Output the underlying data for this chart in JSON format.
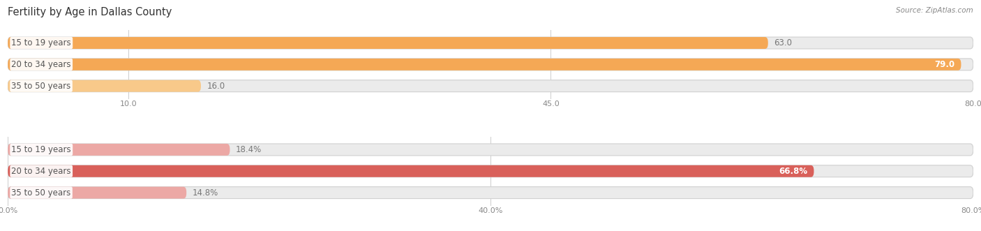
{
  "title": "Fertility by Age in Dallas County",
  "source": "Source: ZipAtlas.com",
  "top_bars": {
    "categories": [
      "15 to 19 years",
      "20 to 34 years",
      "35 to 50 years"
    ],
    "values": [
      63.0,
      79.0,
      16.0
    ],
    "xlim": [
      0,
      80
    ],
    "xticks": [
      10.0,
      45.0,
      80.0
    ],
    "xtick_labels": [
      "10.0",
      "45.0",
      "80.0"
    ],
    "bar_color_strong": "#F5A855",
    "bar_color_light": "#F8C98A",
    "bar_bg_color": "#EBEBEB",
    "value_labels": [
      "63.0",
      "79.0",
      "16.0"
    ],
    "value_inside": [
      false,
      true,
      false
    ]
  },
  "bottom_bars": {
    "categories": [
      "15 to 19 years",
      "20 to 34 years",
      "35 to 50 years"
    ],
    "values": [
      18.4,
      66.8,
      14.8
    ],
    "xlim": [
      0,
      80
    ],
    "xticks": [
      0.0,
      40.0,
      80.0
    ],
    "xtick_labels": [
      "0.0%",
      "40.0%",
      "80.0%"
    ],
    "bar_color_strong": "#D9605A",
    "bar_color_light": "#ECA8A5",
    "bar_bg_color": "#EBEBEB",
    "value_labels": [
      "18.4%",
      "66.8%",
      "14.8%"
    ],
    "value_inside": [
      false,
      true,
      false
    ]
  },
  "label_color": "#555555",
  "value_color_inside": "#FFFFFF",
  "value_color_outside": "#777777",
  "bg_color": "#FFFFFF",
  "bar_height": 0.55,
  "label_fontsize": 8.5,
  "value_fontsize": 8.5,
  "title_fontsize": 10.5,
  "source_fontsize": 7.5
}
